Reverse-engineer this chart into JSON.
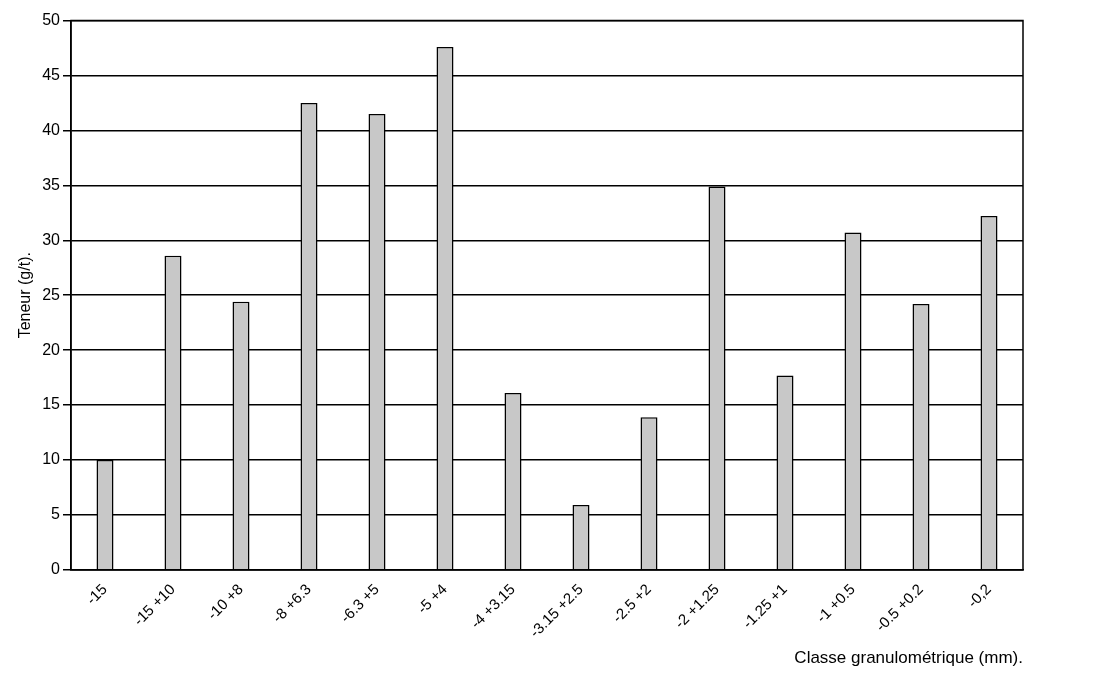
{
  "chart_data": {
    "type": "bar",
    "xlabel": "Classe granulométrique (mm).",
    "ylabel": "Teneur (g/t).",
    "categories": [
      "-15",
      "-15 +10",
      "-10 +8",
      "-8 +6.3",
      "-6.3 +5",
      "-5 +4",
      "-4 +3.15",
      "-3.15 +2.5",
      "-2.5 +2",
      "-2 +1.25",
      "-1.25 +1",
      "-1 +0.5",
      "-0.5 +0.2",
      "-0,2"
    ],
    "values": [
      10,
      28.6,
      24.4,
      42.5,
      41.5,
      47.6,
      16.1,
      5.9,
      13.9,
      34.9,
      17.7,
      30.7,
      24.2,
      32.2
    ],
    "color": "#c8c8c8",
    "ylim": [
      0,
      50
    ],
    "yticks": [
      0,
      5,
      10,
      15,
      20,
      25,
      30,
      35,
      40,
      45,
      50
    ],
    "grid": "y",
    "legend": false
  }
}
